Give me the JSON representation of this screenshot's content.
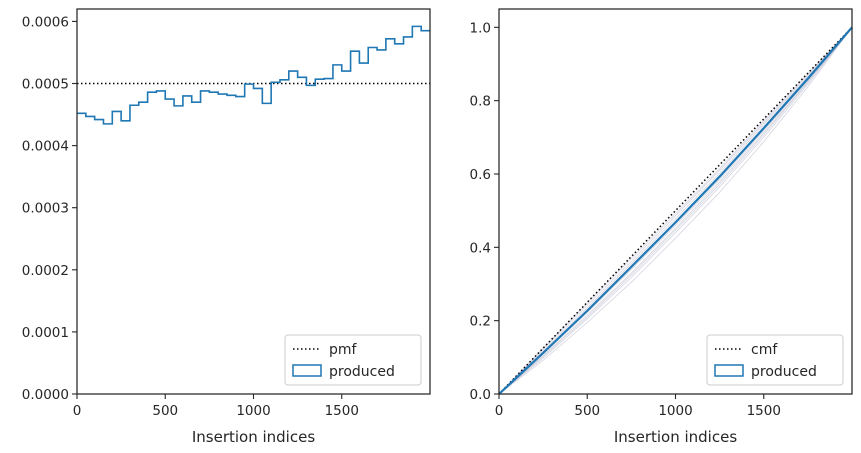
{
  "chart_data": [
    {
      "type": "line",
      "xlabel": "Insertion indices",
      "ylabel": "",
      "xlim": [
        0,
        2000
      ],
      "ylim": [
        0,
        0.00062
      ],
      "xticks": [
        0,
        500,
        1000,
        1500
      ],
      "xtick_labels": [
        "0",
        "500",
        "1000",
        "1500"
      ],
      "yticks": [
        0,
        0.0001,
        0.0002,
        0.0003,
        0.0004,
        0.0005,
        0.0006
      ],
      "ytick_labels": [
        "0.0000",
        "0.0001",
        "0.0002",
        "0.0003",
        "0.0004",
        "0.0005",
        "0.0006"
      ],
      "legend": {
        "position": "lower right",
        "entries": [
          "pmf",
          "produced"
        ]
      },
      "series": [
        {
          "name": "pmf",
          "style": "dotted",
          "color": "#000000",
          "x": [
            0,
            2000
          ],
          "y": [
            0.0005,
            0.0005
          ]
        },
        {
          "name": "produced",
          "style": "histogram-step",
          "color": "#1f77b4",
          "bin_edges": [
            0,
            50,
            100,
            150,
            200,
            250,
            300,
            350,
            400,
            450,
            500,
            550,
            600,
            650,
            700,
            750,
            800,
            850,
            900,
            950,
            1000,
            1050,
            1100,
            1150,
            1200,
            1250,
            1300,
            1350,
            1400,
            1450,
            1500,
            1550,
            1600,
            1650,
            1700,
            1750,
            1800,
            1850,
            1900,
            1950,
            2000
          ],
          "values": [
            0.000452,
            0.000447,
            0.000442,
            0.000435,
            0.000455,
            0.00044,
            0.000465,
            0.00047,
            0.000486,
            0.000488,
            0.000475,
            0.000464,
            0.00048,
            0.00047,
            0.000488,
            0.000486,
            0.000483,
            0.000481,
            0.000479,
            0.000499,
            0.000492,
            0.000468,
            0.000502,
            0.000506,
            0.00052,
            0.00051,
            0.000497,
            0.000507,
            0.000508,
            0.00053,
            0.00052,
            0.000552,
            0.000533,
            0.000558,
            0.000554,
            0.000572,
            0.000564,
            0.000575,
            0.000592,
            0.000585
          ]
        }
      ]
    },
    {
      "type": "line",
      "xlabel": "Insertion indices",
      "ylabel": "",
      "xlim": [
        0,
        2000
      ],
      "ylim": [
        0,
        1.05
      ],
      "xticks": [
        0,
        500,
        1000,
        1500
      ],
      "xtick_labels": [
        "0",
        "500",
        "1000",
        "1500"
      ],
      "yticks": [
        0,
        0.2,
        0.4,
        0.6,
        0.8,
        1.0
      ],
      "ytick_labels": [
        "0.0",
        "0.2",
        "0.4",
        "0.6",
        "0.8",
        "1.0"
      ],
      "legend": {
        "position": "lower right",
        "entries": [
          "cmf",
          "produced"
        ]
      },
      "series": [
        {
          "name": "cmf",
          "style": "dotted",
          "color": "#000000",
          "x": [
            0,
            2000
          ],
          "y": [
            0,
            1
          ]
        },
        {
          "name": "produced",
          "style": "solid",
          "color": "#1f77b4",
          "x": [
            0,
            250,
            500,
            750,
            1000,
            1250,
            1500,
            1750,
            2000
          ],
          "y": [
            0,
            0.112,
            0.227,
            0.347,
            0.468,
            0.593,
            0.725,
            0.86,
            1.0
          ]
        }
      ],
      "background_traces": {
        "color": "#b0b0c8",
        "x": [
          0,
          250,
          500,
          750,
          1000,
          1250,
          1500,
          1750,
          2000
        ],
        "traces": [
          [
            0,
            0.098,
            0.205,
            0.318,
            0.44,
            0.565,
            0.7,
            0.845,
            1.0
          ],
          [
            0,
            0.105,
            0.215,
            0.33,
            0.452,
            0.578,
            0.712,
            0.852,
            1.0
          ],
          [
            0,
            0.118,
            0.235,
            0.355,
            0.478,
            0.602,
            0.735,
            0.866,
            1.0
          ],
          [
            0,
            0.122,
            0.242,
            0.362,
            0.486,
            0.61,
            0.74,
            0.87,
            1.0
          ],
          [
            0,
            0.092,
            0.195,
            0.305,
            0.425,
            0.55,
            0.688,
            0.838,
            1.0
          ],
          [
            0,
            0.11,
            0.222,
            0.34,
            0.46,
            0.585,
            0.718,
            0.856,
            1.0
          ],
          [
            0,
            0.125,
            0.248,
            0.37,
            0.492,
            0.615,
            0.745,
            0.873,
            1.0
          ],
          [
            0,
            0.102,
            0.21,
            0.325,
            0.447,
            0.572,
            0.707,
            0.85,
            1.0
          ]
        ]
      }
    }
  ],
  "colors": {
    "produced": "#1f77b4",
    "reference": "#000000",
    "axes": "#262626"
  }
}
